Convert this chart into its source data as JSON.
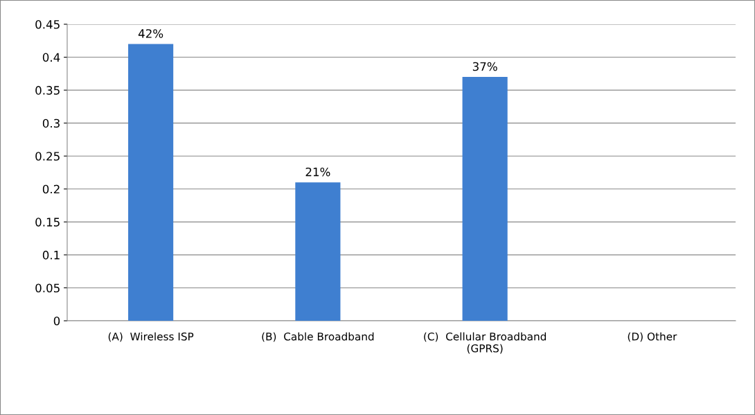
{
  "chart_data": {
    "type": "bar",
    "categories": [
      "(A)  Wireless ISP",
      "(B)  Cable Broadband",
      "(C)  Cellular Broadband\n(GPRS)",
      "(D) Other"
    ],
    "values": [
      0.42,
      0.21,
      0.37,
      0
    ],
    "value_labels": [
      "42%",
      "21%",
      "37%",
      null
    ],
    "color": "#3f7fd0",
    "ylim": [
      0,
      0.45
    ],
    "yticks": [
      0,
      0.05,
      0.1,
      0.15,
      0.2,
      0.25,
      0.3,
      0.35,
      0.4,
      0.45
    ],
    "grid": "y",
    "legend": false
  }
}
